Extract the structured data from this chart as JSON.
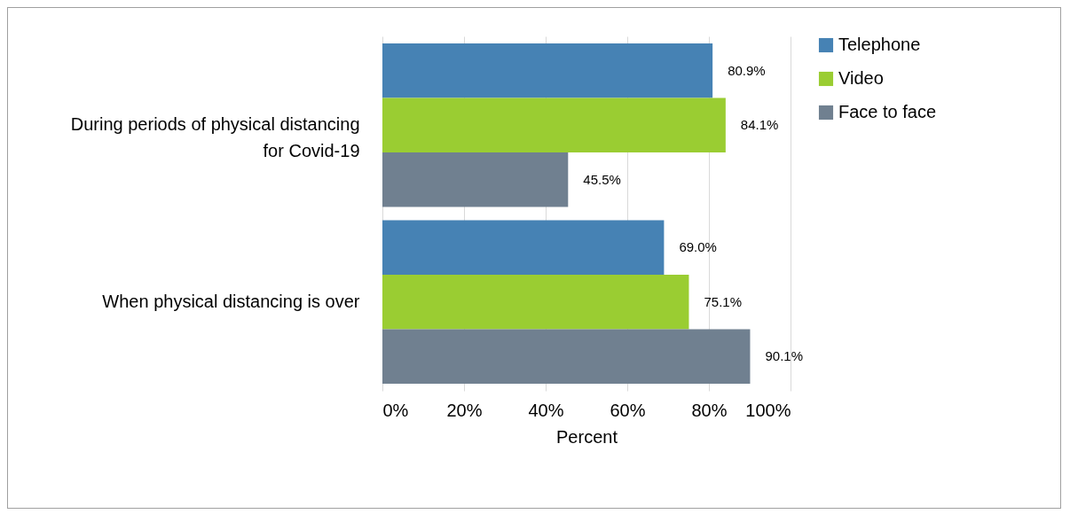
{
  "chart_data": {
    "type": "bar",
    "orientation": "horizontal",
    "xlabel": "Percent",
    "categories": [
      "During periods of physical distancing for Covid-19",
      "When physical distancing is over"
    ],
    "series": [
      {
        "name": "Telephone",
        "color": "#4682b4",
        "values": [
          80.9,
          69.0
        ],
        "value_labels": [
          "80.9%",
          "69.0%"
        ]
      },
      {
        "name": "Video",
        "color": "#9acd32",
        "values": [
          84.1,
          75.1
        ],
        "value_labels": [
          "84.1%",
          "75.1%"
        ]
      },
      {
        "name": "Face to face",
        "color": "#708090",
        "values": [
          45.5,
          90.1
        ],
        "value_labels": [
          "45.5%",
          "90.1%"
        ]
      }
    ],
    "xlim": [
      0,
      100
    ],
    "xticks": [
      {
        "value": 0,
        "label": "0%"
      },
      {
        "value": 20,
        "label": "20%"
      },
      {
        "value": 40,
        "label": "40%"
      },
      {
        "value": 60,
        "label": "60%"
      },
      {
        "value": 80,
        "label": "80%"
      },
      {
        "value": 100,
        "label": "100%"
      }
    ],
    "grid": "x",
    "legend": "right"
  }
}
